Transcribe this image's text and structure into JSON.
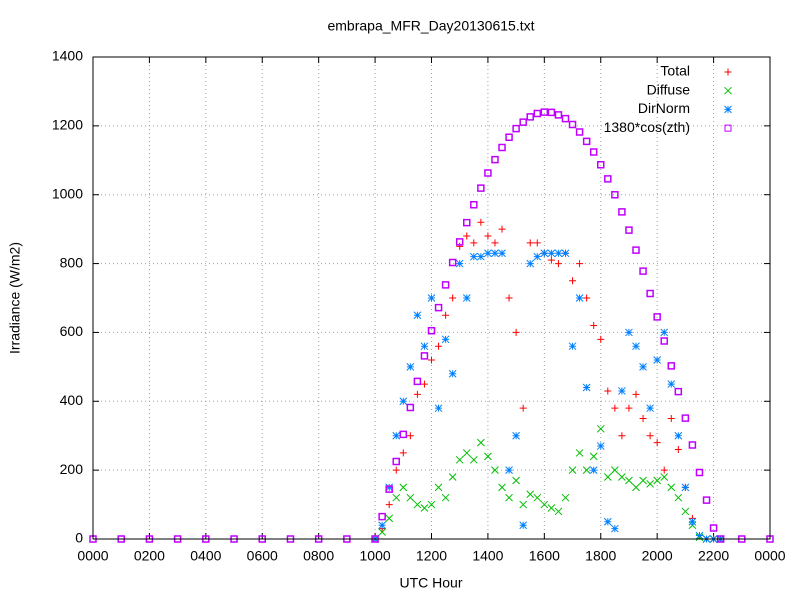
{
  "chart_data": {
    "type": "scatter",
    "title": "embrapa_MFR_Day20130615.txt",
    "x_label": "UTC Hour",
    "y_label": "Irradiance (W/m2)",
    "legend": "top-right",
    "grid": true,
    "xlim": [
      0,
      24
    ],
    "ylim": [
      0,
      1400
    ],
    "xticks": [
      {
        "value": 0,
        "label": "0000"
      },
      {
        "value": 2,
        "label": "0200"
      },
      {
        "value": 4,
        "label": "0400"
      },
      {
        "value": 6,
        "label": "0600"
      },
      {
        "value": 8,
        "label": "0800"
      },
      {
        "value": 10,
        "label": "1000"
      },
      {
        "value": 12,
        "label": "1200"
      },
      {
        "value": 14,
        "label": "1400"
      },
      {
        "value": 16,
        "label": "1600"
      },
      {
        "value": 18,
        "label": "1800"
      },
      {
        "value": 20,
        "label": "2000"
      },
      {
        "value": 22,
        "label": "2200"
      },
      {
        "value": 24,
        "label": "0000"
      }
    ],
    "yticks": [
      0,
      200,
      400,
      600,
      800,
      1000,
      1200,
      1400
    ],
    "x": [
      0,
      1,
      2,
      3,
      4,
      5,
      6,
      7,
      8,
      9,
      10,
      10.25,
      10.5,
      10.75,
      11,
      11.25,
      11.5,
      11.75,
      12,
      12.25,
      12.5,
      12.75,
      13,
      13.25,
      13.5,
      13.75,
      14,
      14.25,
      14.5,
      14.75,
      15,
      15.25,
      15.5,
      15.75,
      16,
      16.25,
      16.5,
      16.75,
      17,
      17.25,
      17.5,
      17.75,
      18,
      18.25,
      18.5,
      18.75,
      19,
      19.25,
      19.5,
      19.75,
      20,
      20.25,
      20.5,
      20.75,
      21,
      21.25,
      21.5,
      21.75,
      22,
      22.25,
      23,
      24
    ],
    "series": [
      {
        "name": "Total",
        "color": "#ff0000",
        "marker": "plus",
        "values": [
          null,
          null,
          null,
          null,
          null,
          null,
          null,
          null,
          null,
          null,
          0,
          30,
          100,
          200,
          250,
          300,
          420,
          450,
          520,
          560,
          650,
          700,
          850,
          880,
          860,
          920,
          880,
          860,
          900,
          700,
          600,
          380,
          860,
          860,
          830,
          810,
          800,
          830,
          750,
          800,
          700,
          620,
          580,
          430,
          380,
          300,
          380,
          420,
          350,
          300,
          280,
          200,
          350,
          260,
          150,
          60,
          10,
          0,
          0,
          0,
          null,
          null
        ]
      },
      {
        "name": "Diffuse",
        "color": "#00c000",
        "marker": "cross",
        "values": [
          null,
          null,
          null,
          null,
          null,
          null,
          null,
          null,
          null,
          null,
          0,
          20,
          60,
          120,
          150,
          120,
          100,
          90,
          100,
          150,
          120,
          180,
          230,
          250,
          230,
          280,
          240,
          200,
          150,
          120,
          170,
          100,
          130,
          120,
          100,
          90,
          80,
          120,
          200,
          250,
          200,
          240,
          320,
          180,
          200,
          180,
          170,
          150,
          170,
          160,
          170,
          180,
          150,
          120,
          80,
          40,
          5,
          0,
          0,
          0,
          null,
          null
        ]
      },
      {
        "name": "DirNorm",
        "color": "#0080ff",
        "marker": "star",
        "values": [
          null,
          null,
          null,
          null,
          null,
          null,
          null,
          null,
          null,
          null,
          0,
          40,
          150,
          300,
          400,
          500,
          650,
          560,
          700,
          380,
          580,
          480,
          800,
          700,
          820,
          820,
          830,
          830,
          830,
          200,
          300,
          40,
          800,
          820,
          830,
          830,
          830,
          830,
          560,
          700,
          440,
          200,
          270,
          50,
          30,
          430,
          600,
          560,
          500,
          380,
          520,
          600,
          450,
          300,
          150,
          50,
          10,
          0,
          0,
          0,
          null,
          null
        ]
      },
      {
        "name": "1380*cos(zth)",
        "color": "#c000ff",
        "marker": "square",
        "values": [
          0,
          0,
          0,
          0,
          0,
          0,
          0,
          0,
          0,
          0,
          0,
          65,
          145,
          225,
          304,
          382,
          458,
          532,
          605,
          672,
          738,
          803,
          863,
          919,
          971,
          1019,
          1063,
          1102,
          1137,
          1167,
          1192,
          1211,
          1226,
          1236,
          1240,
          1239,
          1232,
          1221,
          1204,
          1182,
          1155,
          1124,
          1087,
          1046,
          1000,
          950,
          897,
          839,
          778,
          713,
          645,
          575,
          503,
          428,
          351,
          273,
          193,
          113,
          32,
          0,
          0,
          0
        ]
      }
    ]
  }
}
